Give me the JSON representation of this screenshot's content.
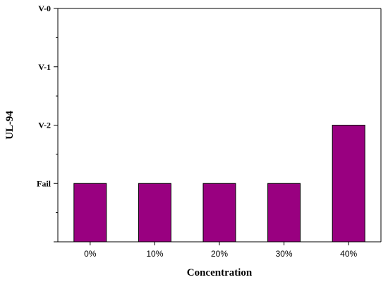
{
  "chart_data": {
    "type": "bar",
    "categories": [
      "0%",
      "10%",
      "20%",
      "30%",
      "40%"
    ],
    "values": [
      0,
      0,
      0,
      0,
      1
    ],
    "y_levels": [
      "Fail",
      "V-2",
      "V-1",
      "V-0"
    ],
    "ylim": [
      -1,
      3
    ],
    "xlabel": "Concentration",
    "ylabel": "UL-94",
    "bar_color": "#990080",
    "grid": false,
    "legend": "none"
  }
}
